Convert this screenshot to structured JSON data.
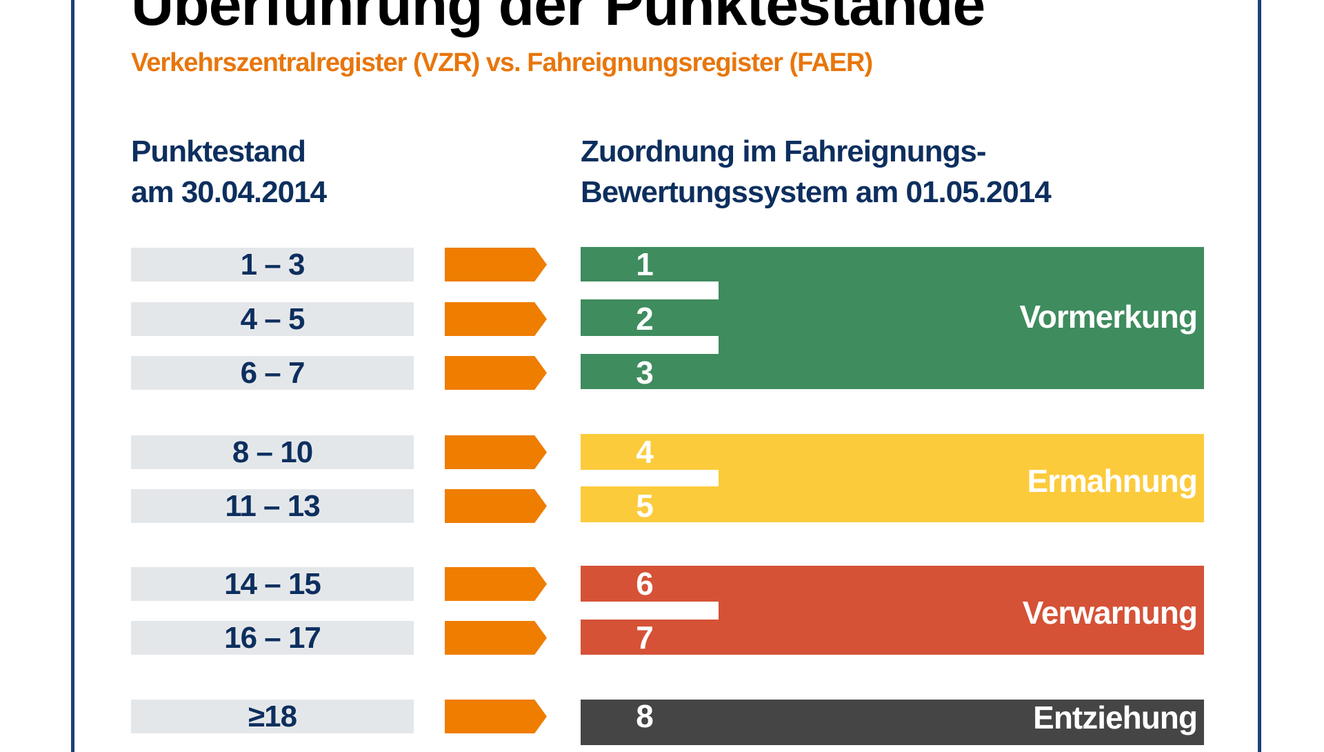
{
  "title": "Überführung der Punktestände",
  "subtitle": "Verkehrszentralregister (VZR) vs. Fahreignungsregister (FAER)",
  "headers": {
    "left_line1": "Punktestand",
    "left_line2": "am 30.04.2014",
    "right_line1": "Zuordnung im Fahreignungs-",
    "right_line2": "Bewertungssystem am 01.05.2014"
  },
  "rows": [
    {
      "old": "1 – 3",
      "new": "1"
    },
    {
      "old": "4 – 5",
      "new": "2"
    },
    {
      "old": "6 – 7",
      "new": "3"
    },
    {
      "old": "8 – 10",
      "new": "4"
    },
    {
      "old": "11 – 13",
      "new": "5"
    },
    {
      "old": "14 – 15",
      "new": "6"
    },
    {
      "old": "16 – 17",
      "new": "7"
    },
    {
      "old": "≥18",
      "new": "8"
    }
  ],
  "groups": [
    {
      "label": "Vormerkung",
      "color": "#3f8c5e"
    },
    {
      "label": "Ermahnung",
      "color": "#fccb3c"
    },
    {
      "label": "Verwarnung",
      "color": "#d55237"
    },
    {
      "label": "Entziehung",
      "color": "#454545"
    }
  ],
  "colors": {
    "arrow": "#ef7d00",
    "border": "#1d3f7a",
    "text": "#0d2f5e",
    "accent": "#e8760c"
  }
}
